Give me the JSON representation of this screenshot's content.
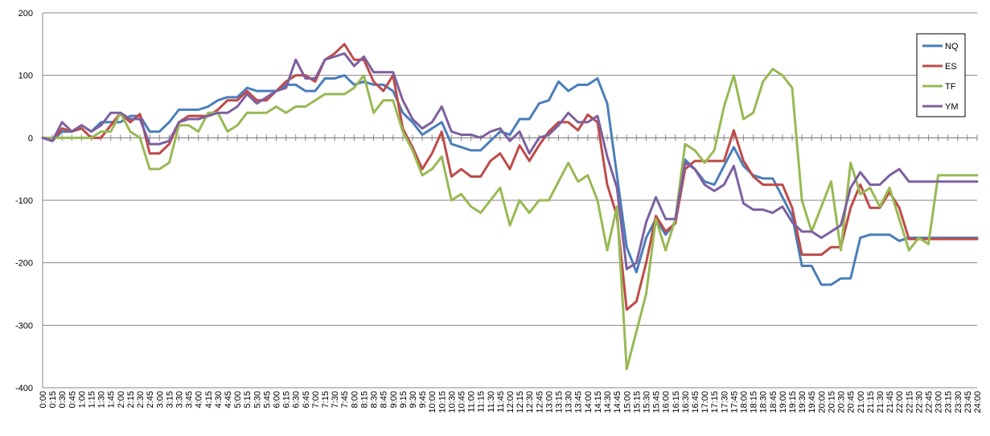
{
  "chart_data": {
    "type": "line",
    "title": "",
    "xlabel": "",
    "ylabel": "",
    "ylim": [
      -400,
      200
    ],
    "ytick_step": 100,
    "grid": "horizontal",
    "legend_position": "right",
    "x": [
      "0:00",
      "0:15",
      "0:30",
      "0:45",
      "1:00",
      "1:15",
      "1:30",
      "1:45",
      "2:00",
      "2:15",
      "2:30",
      "2:45",
      "3:00",
      "3:15",
      "3:30",
      "3:45",
      "4:00",
      "4:15",
      "4:30",
      "4:45",
      "5:00",
      "5:15",
      "5:30",
      "5:45",
      "6:00",
      "6:15",
      "6:30",
      "6:45",
      "7:00",
      "7:15",
      "7:30",
      "7:45",
      "8:00",
      "8:15",
      "8:30",
      "8:45",
      "9:00",
      "9:15",
      "9:30",
      "9:45",
      "10:00",
      "10:15",
      "10:30",
      "10:45",
      "11:00",
      "11:15",
      "11:30",
      "11:45",
      "12:00",
      "12:15",
      "12:30",
      "12:45",
      "13:00",
      "13:15",
      "13:30",
      "13:45",
      "14:00",
      "14:15",
      "14:30",
      "14:45",
      "15:00",
      "15:15",
      "15:30",
      "15:45",
      "16:00",
      "16:15",
      "16:30",
      "16:45",
      "17:00",
      "17:15",
      "17:30",
      "17:45",
      "18:00",
      "18:15",
      "18:30",
      "18:45",
      "19:00",
      "19:15",
      "19:30",
      "19:45",
      "20:00",
      "20:15",
      "20:30",
      "20:45",
      "21:00",
      "21:15",
      "21:30",
      "21:45",
      "22:00",
      "22:15",
      "22:30",
      "22:45",
      "23:00",
      "23:15",
      "23:30",
      "23:45",
      "24:00"
    ],
    "series": [
      {
        "name": "NQ",
        "color": "#4a7ebb",
        "values": [
          0,
          -5,
          10,
          10,
          20,
          10,
          25,
          25,
          25,
          35,
          35,
          10,
          10,
          25,
          45,
          45,
          45,
          50,
          60,
          65,
          65,
          80,
          75,
          75,
          75,
          85,
          85,
          75,
          75,
          95,
          95,
          100,
          85,
          90,
          85,
          85,
          75,
          40,
          25,
          5,
          15,
          25,
          -10,
          -15,
          -20,
          -20,
          -5,
          10,
          5,
          30,
          30,
          55,
          60,
          90,
          75,
          85,
          85,
          95,
          55,
          -60,
          -175,
          -215,
          -160,
          -130,
          -155,
          -135,
          -35,
          -50,
          -70,
          -75,
          -45,
          -15,
          -45,
          -60,
          -65,
          -65,
          -95,
          -125,
          -205,
          -205,
          -235,
          -235,
          -225,
          -225,
          -160,
          -155,
          -155,
          -155,
          -165,
          -160,
          -160,
          -160,
          -160,
          -160,
          -160,
          -160,
          -160
        ]
      },
      {
        "name": "ES",
        "color": "#be4b48",
        "values": [
          0,
          -5,
          15,
          10,
          15,
          0,
          0,
          20,
          40,
          25,
          38,
          -25,
          -25,
          -10,
          25,
          35,
          35,
          35,
          45,
          60,
          60,
          75,
          60,
          60,
          75,
          90,
          100,
          100,
          90,
          125,
          135,
          150,
          125,
          125,
          90,
          75,
          100,
          15,
          -15,
          -50,
          -25,
          10,
          -62,
          -50,
          -62,
          -62,
          -37,
          -25,
          -50,
          -12,
          -37,
          -12,
          10,
          25,
          25,
          12,
          37,
          25,
          -75,
          -125,
          -275,
          -262,
          -200,
          -125,
          -150,
          -137,
          -50,
          -37,
          -37,
          -37,
          -37,
          12,
          -37,
          -62,
          -75,
          -75,
          -75,
          -112,
          -187,
          -187,
          -187,
          -175,
          -175,
          -112,
          -75,
          -112,
          -112,
          -87,
          -112,
          -162,
          -162,
          -162,
          -162,
          -162,
          -162,
          -162,
          -162
        ]
      },
      {
        "name": "TF",
        "color": "#98b954",
        "values": [
          0,
          0,
          0,
          0,
          0,
          0,
          10,
          10,
          40,
          10,
          0,
          -50,
          -50,
          -40,
          20,
          20,
          10,
          40,
          40,
          10,
          20,
          40,
          40,
          40,
          50,
          40,
          50,
          50,
          60,
          70,
          70,
          70,
          80,
          100,
          40,
          60,
          60,
          10,
          -20,
          -60,
          -50,
          -30,
          -100,
          -90,
          -110,
          -120,
          -100,
          -80,
          -140,
          -100,
          -120,
          -100,
          -100,
          -70,
          -40,
          -70,
          -60,
          -100,
          -180,
          -110,
          -370,
          -310,
          -250,
          -130,
          -180,
          -130,
          -10,
          -20,
          -40,
          -20,
          50,
          100,
          30,
          40,
          90,
          110,
          100,
          80,
          -100,
          -150,
          -110,
          -70,
          -180,
          -40,
          -90,
          -80,
          -110,
          -80,
          -130,
          -180,
          -160,
          -170,
          -60,
          -60,
          -60,
          -60,
          -60
        ]
      },
      {
        "name": "YM",
        "color": "#7d60a0",
        "values": [
          0,
          -5,
          25,
          10,
          20,
          10,
          20,
          40,
          40,
          30,
          30,
          -10,
          -10,
          -5,
          25,
          30,
          30,
          35,
          40,
          40,
          50,
          70,
          55,
          65,
          75,
          80,
          125,
          95,
          95,
          125,
          130,
          135,
          115,
          130,
          105,
          105,
          105,
          60,
          30,
          15,
          25,
          50,
          10,
          5,
          5,
          0,
          10,
          15,
          -5,
          10,
          -25,
          0,
          5,
          20,
          40,
          25,
          25,
          35,
          -30,
          -80,
          -210,
          -200,
          -135,
          -95,
          -130,
          -130,
          -40,
          -50,
          -75,
          -85,
          -75,
          -45,
          -105,
          -115,
          -115,
          -120,
          -110,
          -135,
          -150,
          -150,
          -160,
          -150,
          -140,
          -80,
          -55,
          -75,
          -75,
          -60,
          -50,
          -70,
          -70,
          -70,
          -70,
          -70,
          -70,
          -70,
          -70
        ]
      }
    ]
  }
}
